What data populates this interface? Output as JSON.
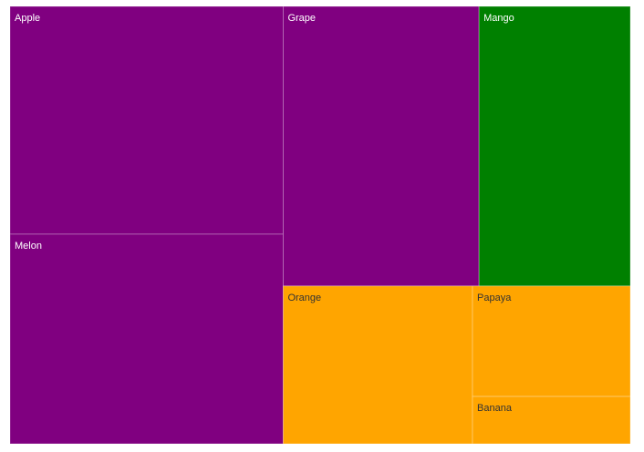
{
  "chart_data": {
    "type": "treemap",
    "title": "",
    "items": [
      {
        "name": "Apple",
        "value": 25,
        "color": "#800080",
        "label_color": "#ffffff"
      },
      {
        "name": "Melon",
        "value": 23,
        "color": "#800080",
        "label_color": "#ffffff"
      },
      {
        "name": "Grape",
        "value": 22,
        "color": "#800080",
        "label_color": "#ffffff"
      },
      {
        "name": "Mango",
        "value": 17,
        "color": "#008000",
        "label_color": "#ffffff"
      },
      {
        "name": "Orange",
        "value": 12,
        "color": "#FFA500",
        "label_color": "#333333"
      },
      {
        "name": "Papaya",
        "value": 7,
        "color": "#FFA500",
        "label_color": "#333333"
      },
      {
        "name": "Banana",
        "value": 3,
        "color": "#FFA500",
        "label_color": "#333333"
      }
    ]
  }
}
